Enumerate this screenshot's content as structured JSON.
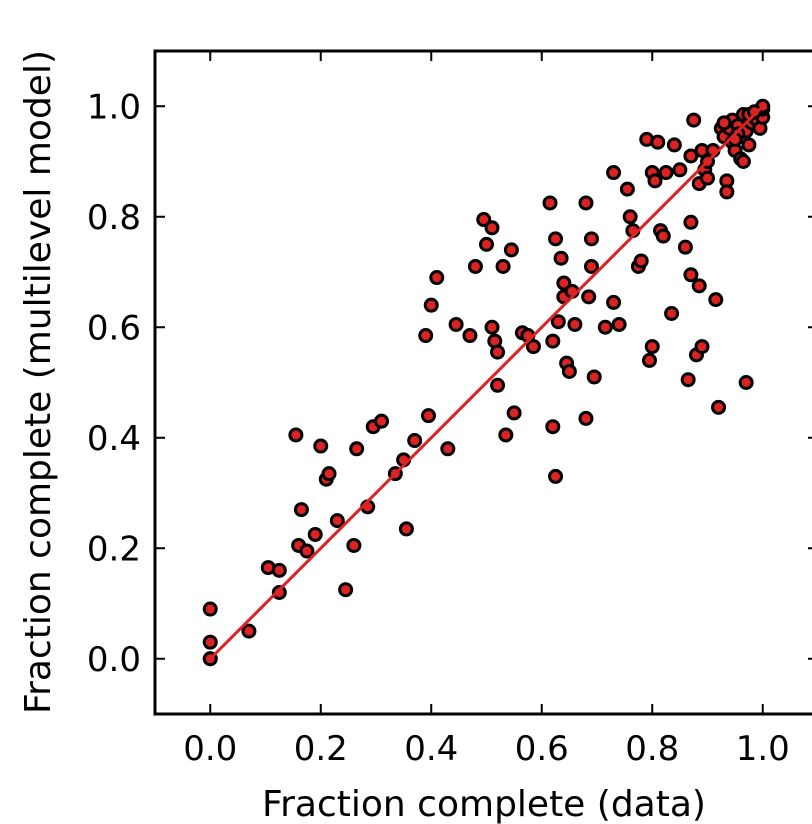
{
  "chart_data": {
    "type": "scatter",
    "title": "",
    "xlabel": "Fraction complete (data)",
    "ylabel": "Fraction complete (multilevel model)",
    "xlim": [
      -0.1,
      1.1
    ],
    "ylim": [
      -0.1,
      1.1
    ],
    "xticks": [
      "0.0",
      "0.2",
      "0.4",
      "0.6",
      "0.8",
      "1.0"
    ],
    "yticks": [
      "0.0",
      "0.2",
      "0.4",
      "0.6",
      "0.8",
      "1.0"
    ],
    "grid": false,
    "legend": "none",
    "colors": {
      "marker_fill": "#dd2222",
      "marker_edge": "#000000",
      "line": "#dd2222"
    },
    "reference_line": {
      "x": [
        0.0,
        1.0
      ],
      "y": [
        0.0,
        1.0
      ]
    },
    "points": [
      [
        0.0,
        0.09
      ],
      [
        0.0,
        0.03
      ],
      [
        0.0,
        0.0
      ],
      [
        0.0,
        0.0
      ],
      [
        0.07,
        0.05
      ],
      [
        0.105,
        0.165
      ],
      [
        0.125,
        0.16
      ],
      [
        0.125,
        0.12
      ],
      [
        0.155,
        0.405
      ],
      [
        0.16,
        0.205
      ],
      [
        0.165,
        0.27
      ],
      [
        0.175,
        0.195
      ],
      [
        0.19,
        0.225
      ],
      [
        0.2,
        0.385
      ],
      [
        0.21,
        0.325
      ],
      [
        0.215,
        0.335
      ],
      [
        0.23,
        0.25
      ],
      [
        0.245,
        0.125
      ],
      [
        0.26,
        0.205
      ],
      [
        0.265,
        0.38
      ],
      [
        0.285,
        0.275
      ],
      [
        0.295,
        0.42
      ],
      [
        0.31,
        0.43
      ],
      [
        0.335,
        0.335
      ],
      [
        0.35,
        0.36
      ],
      [
        0.355,
        0.235
      ],
      [
        0.37,
        0.395
      ],
      [
        0.39,
        0.585
      ],
      [
        0.395,
        0.44
      ],
      [
        0.4,
        0.64
      ],
      [
        0.41,
        0.69
      ],
      [
        0.43,
        0.38
      ],
      [
        0.445,
        0.605
      ],
      [
        0.47,
        0.585
      ],
      [
        0.48,
        0.71
      ],
      [
        0.495,
        0.795
      ],
      [
        0.5,
        0.75
      ],
      [
        0.51,
        0.78
      ],
      [
        0.51,
        0.6
      ],
      [
        0.515,
        0.575
      ],
      [
        0.52,
        0.495
      ],
      [
        0.52,
        0.555
      ],
      [
        0.53,
        0.71
      ],
      [
        0.535,
        0.405
      ],
      [
        0.545,
        0.74
      ],
      [
        0.55,
        0.445
      ],
      [
        0.565,
        0.59
      ],
      [
        0.575,
        0.585
      ],
      [
        0.585,
        0.565
      ],
      [
        0.615,
        0.825
      ],
      [
        0.62,
        0.42
      ],
      [
        0.62,
        0.575
      ],
      [
        0.625,
        0.33
      ],
      [
        0.625,
        0.76
      ],
      [
        0.63,
        0.61
      ],
      [
        0.635,
        0.725
      ],
      [
        0.64,
        0.655
      ],
      [
        0.64,
        0.68
      ],
      [
        0.645,
        0.535
      ],
      [
        0.65,
        0.52
      ],
      [
        0.655,
        0.665
      ],
      [
        0.66,
        0.605
      ],
      [
        0.68,
        0.825
      ],
      [
        0.68,
        0.435
      ],
      [
        0.685,
        0.655
      ],
      [
        0.69,
        0.76
      ],
      [
        0.69,
        0.71
      ],
      [
        0.695,
        0.51
      ],
      [
        0.715,
        0.6
      ],
      [
        0.73,
        0.88
      ],
      [
        0.73,
        0.645
      ],
      [
        0.74,
        0.605
      ],
      [
        0.755,
        0.85
      ],
      [
        0.76,
        0.8
      ],
      [
        0.765,
        0.775
      ],
      [
        0.775,
        0.71
      ],
      [
        0.78,
        0.72
      ],
      [
        0.79,
        0.94
      ],
      [
        0.795,
        0.54
      ],
      [
        0.8,
        0.565
      ],
      [
        0.8,
        0.88
      ],
      [
        0.805,
        0.865
      ],
      [
        0.81,
        0.935
      ],
      [
        0.815,
        0.775
      ],
      [
        0.82,
        0.765
      ],
      [
        0.825,
        0.88
      ],
      [
        0.835,
        0.625
      ],
      [
        0.84,
        0.93
      ],
      [
        0.85,
        0.885
      ],
      [
        0.86,
        0.745
      ],
      [
        0.865,
        0.505
      ],
      [
        0.87,
        0.695
      ],
      [
        0.87,
        0.79
      ],
      [
        0.87,
        0.91
      ],
      [
        0.875,
        0.975
      ],
      [
        0.88,
        0.55
      ],
      [
        0.885,
        0.675
      ],
      [
        0.885,
        0.86
      ],
      [
        0.89,
        0.92
      ],
      [
        0.89,
        0.565
      ],
      [
        0.895,
        0.885
      ],
      [
        0.9,
        0.87
      ],
      [
        0.9,
        0.9
      ],
      [
        0.91,
        0.92
      ],
      [
        0.915,
        0.65
      ],
      [
        0.92,
        0.455
      ],
      [
        0.925,
        0.96
      ],
      [
        0.93,
        0.945
      ],
      [
        0.935,
        0.865
      ],
      [
        0.935,
        0.845
      ],
      [
        0.94,
        0.96
      ],
      [
        0.945,
        0.935
      ],
      [
        0.945,
        0.975
      ],
      [
        0.95,
        0.92
      ],
      [
        0.955,
        0.965
      ],
      [
        0.96,
        0.945
      ],
      [
        0.96,
        0.905
      ],
      [
        0.965,
        0.985
      ],
      [
        0.965,
        0.9
      ],
      [
        0.97,
        0.5
      ],
      [
        0.97,
        0.955
      ],
      [
        0.975,
        0.93
      ],
      [
        0.98,
        0.97
      ],
      [
        0.985,
        0.98
      ],
      [
        0.99,
        0.975
      ],
      [
        0.99,
        0.99
      ],
      [
        0.995,
        0.96
      ],
      [
        1.0,
        0.98
      ],
      [
        1.0,
        0.995
      ],
      [
        1.0,
        1.0
      ],
      [
        0.93,
        0.97
      ],
      [
        0.955,
        0.95
      ],
      [
        0.975,
        0.985
      ],
      [
        0.985,
        0.99
      ],
      [
        0.95,
        0.94
      ]
    ]
  }
}
